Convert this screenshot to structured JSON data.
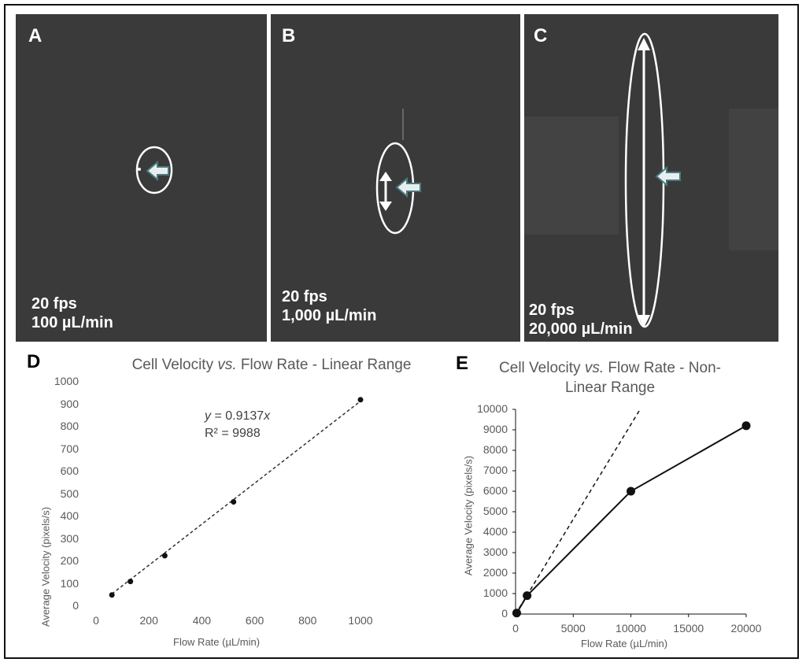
{
  "panels": [
    {
      "letter": "A",
      "fps": "20 fps",
      "flow": "100 µL/min"
    },
    {
      "letter": "B",
      "fps": "20 fps",
      "flow": "1,000 µL/min"
    },
    {
      "letter": "C",
      "fps": "20 fps",
      "flow": "20,000 µL/min"
    }
  ],
  "chart_data": [
    {
      "type": "scatter",
      "letter": "D",
      "title": "Cell Velocity vs. Flow Rate - Linear Range",
      "title_parts": {
        "a": "Cell Velocity ",
        "b": "vs.",
        "c": " Flow Rate - Linear Range"
      },
      "xlabel": "Flow Rate (µL/min)",
      "ylabel": "Average Velocity (pixels/s)",
      "xlim": [
        0,
        1000
      ],
      "ylim": [
        0,
        1000
      ],
      "x_ticks": [
        "0",
        "200",
        "400",
        "600",
        "800",
        "1000"
      ],
      "y_ticks": [
        "0",
        "100",
        "200",
        "300",
        "400",
        "500",
        "600",
        "700",
        "800",
        "900",
        "1000"
      ],
      "x": [
        60,
        130,
        260,
        520,
        1000
      ],
      "y": [
        50,
        110,
        225,
        465,
        920
      ],
      "trendline": {
        "slope": 0.9137,
        "style": "dashed"
      },
      "equation": {
        "y_sym": "y",
        "eq_text": " = 0.9137",
        "x_sym": "x",
        "r2_text": "R² = 9988"
      }
    },
    {
      "type": "line",
      "letter": "E",
      "title": "Cell Velocity vs. Flow Rate - Non-Linear Range",
      "title_line1": {
        "a": "Cell Velocity ",
        "b": "vs.",
        "c": " Flow Rate - Non-"
      },
      "title_line2": "Linear Range",
      "xlabel": "Flow Rate (µL/min)",
      "ylabel": "Average Velocity (pixels/s)",
      "xlim": [
        0,
        20000
      ],
      "ylim": [
        0,
        10000
      ],
      "x_ticks": [
        "0",
        "5000",
        "10000",
        "15000",
        "20000"
      ],
      "y_ticks": [
        "0",
        "1000",
        "2000",
        "3000",
        "4000",
        "5000",
        "6000",
        "7000",
        "8000",
        "9000",
        "10000"
      ],
      "x": [
        100,
        1000,
        10000,
        20000
      ],
      "y": [
        50,
        900,
        6000,
        9200
      ],
      "reference_line": {
        "x": [
          0,
          10800
        ],
        "y": [
          0,
          10000
        ],
        "style": "dashed"
      }
    }
  ]
}
